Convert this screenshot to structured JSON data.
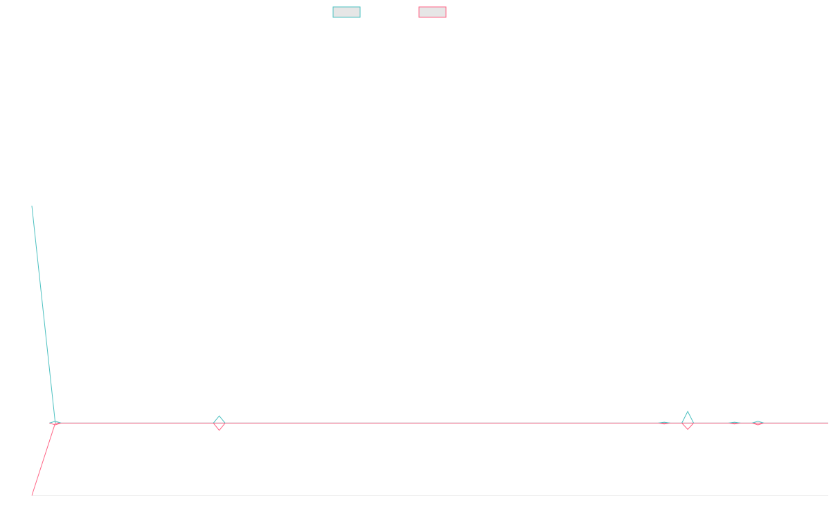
{
  "chart_data": {
    "type": "line",
    "title": "",
    "xlabel": "",
    "ylabel": "",
    "grid": false,
    "legend_position": "top",
    "colors": {
      "series_a": "#4bc0c0",
      "series_b": "#ff6384",
      "axis": "#e6e6e6",
      "legend_fill": "#e6e6e6"
    },
    "x": [
      0,
      1,
      8,
      27,
      28,
      30,
      31
    ],
    "series": [
      {
        "values": [
          600,
          0,
          0,
          0,
          0,
          0,
          0
        ],
        "point_heights": [
          0,
          0.4,
          1.6,
          0.2,
          2.6,
          0.2,
          0.4
        ]
      },
      {
        "values": [
          -200,
          0,
          0,
          0,
          0,
          0,
          0
        ],
        "point_heights": [
          0,
          0.4,
          1.6,
          0.2,
          1.4,
          0.2,
          0.4
        ]
      }
    ],
    "xlim": [
      0,
      34
    ],
    "ylim": [
      -200,
      1100
    ]
  }
}
